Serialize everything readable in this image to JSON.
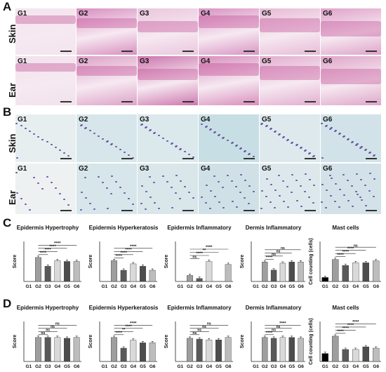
{
  "panels": {
    "A": {
      "letter": "A",
      "rows": [
        "Skin",
        "Ear"
      ]
    },
    "B": {
      "letter": "B",
      "rows": [
        "Skin",
        "Ear"
      ]
    },
    "C": {
      "letter": "C"
    },
    "D": {
      "letter": "D"
    }
  },
  "groups": [
    "G1",
    "G2",
    "G3",
    "G4",
    "G5",
    "G6"
  ],
  "colors": {
    "he_skin": [
      "#f3e4ee",
      "#d98fc0",
      "#eac6dd",
      "#d994c4",
      "#e7bbd6",
      "#dfa2c9"
    ],
    "he_ear": [
      "#f1e2ec",
      "#dda2c7",
      "#cd77ae",
      "#d98ebd",
      "#e2aecf",
      "#dfa6c9"
    ],
    "tb_skin": [
      "#e7eeef",
      "#d7e6ea",
      "#dbe8ec",
      "#c7dfe4",
      "#dde9ec",
      "#d1e3e8"
    ],
    "tb_ear": [
      "#eef1f1",
      "#d6e6ea",
      "#d9e6ea",
      "#cfe1e6",
      "#dde8ec",
      "#d3e2e8"
    ],
    "bars": [
      "#000000",
      "#9e9e9e",
      "#595959",
      "#d9d9d9",
      "#4d4d4d",
      "#bdbdbd"
    ]
  },
  "chart_data": [
    {
      "panel": "C",
      "type": "bar",
      "title": "Epidermis Hypertrophy",
      "ylabel": "Score",
      "categories": [
        "G1",
        "G2",
        "G3",
        "G4",
        "G5",
        "G6"
      ],
      "values": [
        0,
        3.0,
        1.9,
        2.6,
        2.5,
        2.5
      ],
      "ylim": [
        0,
        5
      ],
      "comparisons": [
        {
          "to": "G3",
          "label": "****"
        },
        {
          "to": "G4",
          "label": "****"
        },
        {
          "to": "G5",
          "label": "****"
        },
        {
          "to": "G6",
          "label": "****"
        }
      ]
    },
    {
      "panel": "C",
      "type": "bar",
      "title": "Epidermis Hyperkeratosis",
      "ylabel": "Score",
      "categories": [
        "G1",
        "G2",
        "G3",
        "G4",
        "G5",
        "G6"
      ],
      "values": [
        0,
        2.6,
        1.4,
        2.2,
        1.9,
        1.4
      ],
      "ylim": [
        0,
        5
      ],
      "comparisons": [
        {
          "to": "G3",
          "label": "****"
        },
        {
          "to": "G4",
          "label": "****"
        },
        {
          "to": "G5",
          "label": "****"
        },
        {
          "to": "G6",
          "label": "****"
        }
      ]
    },
    {
      "panel": "C",
      "type": "bar",
      "title": "Epidermis Inflammatory",
      "ylabel": "Score",
      "categories": [
        "G1",
        "G2",
        "G3",
        "G4",
        "G5",
        "G6"
      ],
      "values": [
        0,
        0.3,
        0.15,
        1.0,
        0,
        0.85
      ],
      "ylim": [
        0,
        2.0
      ],
      "comparisons": [
        {
          "to": "G3",
          "label": "ns"
        },
        {
          "to": "G4",
          "label": "****"
        },
        {
          "to": "G5",
          "label": "**"
        },
        {
          "to": "G6",
          "label": "****"
        }
      ]
    },
    {
      "panel": "C",
      "type": "bar",
      "title": "Dermis Inflammatory",
      "ylabel": "Score",
      "categories": [
        "G1",
        "G2",
        "G3",
        "G4",
        "G5",
        "G6"
      ],
      "values": [
        0,
        1.7,
        1.0,
        1.6,
        1.7,
        1.7
      ],
      "ylim": [
        0,
        3.5
      ],
      "comparisons": [
        {
          "to": "G3",
          "label": "****"
        },
        {
          "to": "G4",
          "label": "ns"
        },
        {
          "to": "G5",
          "label": "ns"
        },
        {
          "to": "G6",
          "label": "ns"
        }
      ]
    },
    {
      "panel": "C",
      "type": "bar",
      "title": "Mast cells",
      "ylabel": "Cell counting (cells)",
      "categories": [
        "G1",
        "G2",
        "G3",
        "G4",
        "G5",
        "G6"
      ],
      "values": [
        6,
        33,
        24,
        28,
        28,
        31
      ],
      "ylim": [
        0,
        60
      ],
      "comparisons": [
        {
          "to": "G3",
          "label": "****"
        },
        {
          "to": "G4",
          "label": "****"
        },
        {
          "to": "G5",
          "label": "****"
        },
        {
          "to": "G6",
          "label": "ns"
        }
      ]
    },
    {
      "panel": "D",
      "type": "bar",
      "title": "Epidermis Hypertrophy",
      "ylabel": "Score",
      "categories": [
        "G1",
        "G2",
        "G3",
        "G4",
        "G5",
        "G6"
      ],
      "values": [
        0,
        3.0,
        3.0,
        3.0,
        2.9,
        3.0
      ],
      "ylim": [
        0,
        5
      ],
      "comparisons": [
        {
          "to": "G3",
          "label": "ns"
        },
        {
          "to": "G4",
          "label": "ns"
        },
        {
          "to": "G5",
          "label": "ns"
        },
        {
          "to": "G6",
          "label": "ns"
        }
      ]
    },
    {
      "panel": "D",
      "type": "bar",
      "title": "Epidermis Hyperkeratosis",
      "ylabel": "Score",
      "categories": [
        "G1",
        "G2",
        "G3",
        "G4",
        "G5",
        "G6"
      ],
      "values": [
        0,
        1.8,
        1.0,
        1.6,
        1.4,
        1.4
      ],
      "ylim": [
        0,
        3.0
      ],
      "comparisons": [
        {
          "to": "G3",
          "label": "****"
        },
        {
          "to": "G4",
          "label": "**"
        },
        {
          "to": "G5",
          "label": "****"
        },
        {
          "to": "G6",
          "label": "****"
        }
      ]
    },
    {
      "panel": "D",
      "type": "bar",
      "title": "Epidermis Inflammatory",
      "ylabel": "Score",
      "categories": [
        "G1",
        "G2",
        "G3",
        "G4",
        "G5",
        "G6"
      ],
      "values": [
        0,
        2.9,
        2.8,
        2.7,
        2.7,
        3.0
      ],
      "ylim": [
        0,
        5
      ],
      "comparisons": [
        {
          "to": "G3",
          "label": "ns"
        },
        {
          "to": "G4",
          "label": "ns"
        },
        {
          "to": "G5",
          "label": "ns"
        },
        {
          "to": "G6",
          "label": "ns"
        }
      ]
    },
    {
      "panel": "D",
      "type": "bar",
      "title": "Dermis Inflammatory",
      "ylabel": "Score",
      "categories": [
        "G1",
        "G2",
        "G3",
        "G4",
        "G5",
        "G6"
      ],
      "values": [
        0,
        3.0,
        2.9,
        3.0,
        3.0,
        2.9
      ],
      "ylim": [
        0,
        5
      ],
      "comparisons": [
        {
          "to": "G3",
          "label": "****"
        },
        {
          "to": "G4",
          "label": "ns"
        },
        {
          "to": "G5",
          "label": "ns"
        },
        {
          "to": "G6",
          "label": "****"
        }
      ]
    },
    {
      "panel": "D",
      "type": "bar",
      "title": "Mast cells",
      "ylabel": "Cell counting (cells)",
      "categories": [
        "G1",
        "G2",
        "G3",
        "G4",
        "G5",
        "G6"
      ],
      "values": [
        12,
        38,
        18,
        18,
        22,
        20
      ],
      "ylim": [
        0,
        60
      ],
      "comparisons": [
        {
          "to": "G3",
          "label": "****"
        },
        {
          "to": "G4",
          "label": "****"
        },
        {
          "to": "G5",
          "label": "****"
        },
        {
          "to": "G6",
          "label": "****"
        }
      ]
    }
  ]
}
